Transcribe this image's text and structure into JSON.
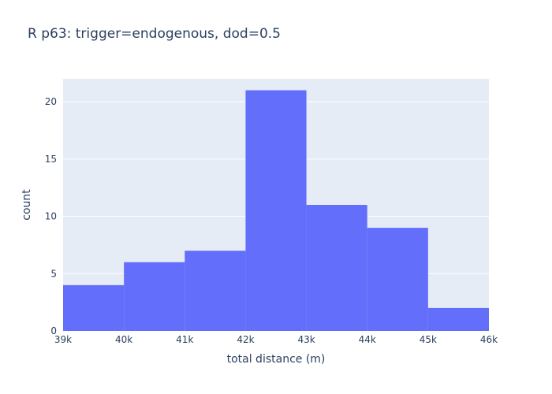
{
  "chart_data": {
    "type": "bar",
    "title": "R p63: trigger=endogenous, dod=0.5",
    "xlabel": "total distance (m)",
    "ylabel": "count",
    "bin_edges": [
      39000,
      40000,
      41000,
      42000,
      43000,
      44000,
      45000,
      46000
    ],
    "values": [
      4,
      6,
      7,
      21,
      11,
      9,
      2
    ],
    "xlim": [
      39000,
      46000
    ],
    "ylim": [
      0,
      22
    ],
    "x_ticks": [
      {
        "value": 39000,
        "label": "39k"
      },
      {
        "value": 40000,
        "label": "40k"
      },
      {
        "value": 41000,
        "label": "41k"
      },
      {
        "value": 42000,
        "label": "42k"
      },
      {
        "value": 43000,
        "label": "43k"
      },
      {
        "value": 44000,
        "label": "44k"
      },
      {
        "value": 45000,
        "label": "45k"
      },
      {
        "value": 46000,
        "label": "46k"
      }
    ],
    "y_ticks": [
      {
        "value": 0,
        "label": "0"
      },
      {
        "value": 5,
        "label": "5"
      },
      {
        "value": 10,
        "label": "10"
      },
      {
        "value": 15,
        "label": "15"
      },
      {
        "value": 20,
        "label": "20"
      }
    ],
    "grid": true,
    "colors": {
      "bar": "#636efa",
      "plot_bg": "#e5ecf6",
      "grid": "#ffffff",
      "text": "#2a3f5f"
    }
  }
}
